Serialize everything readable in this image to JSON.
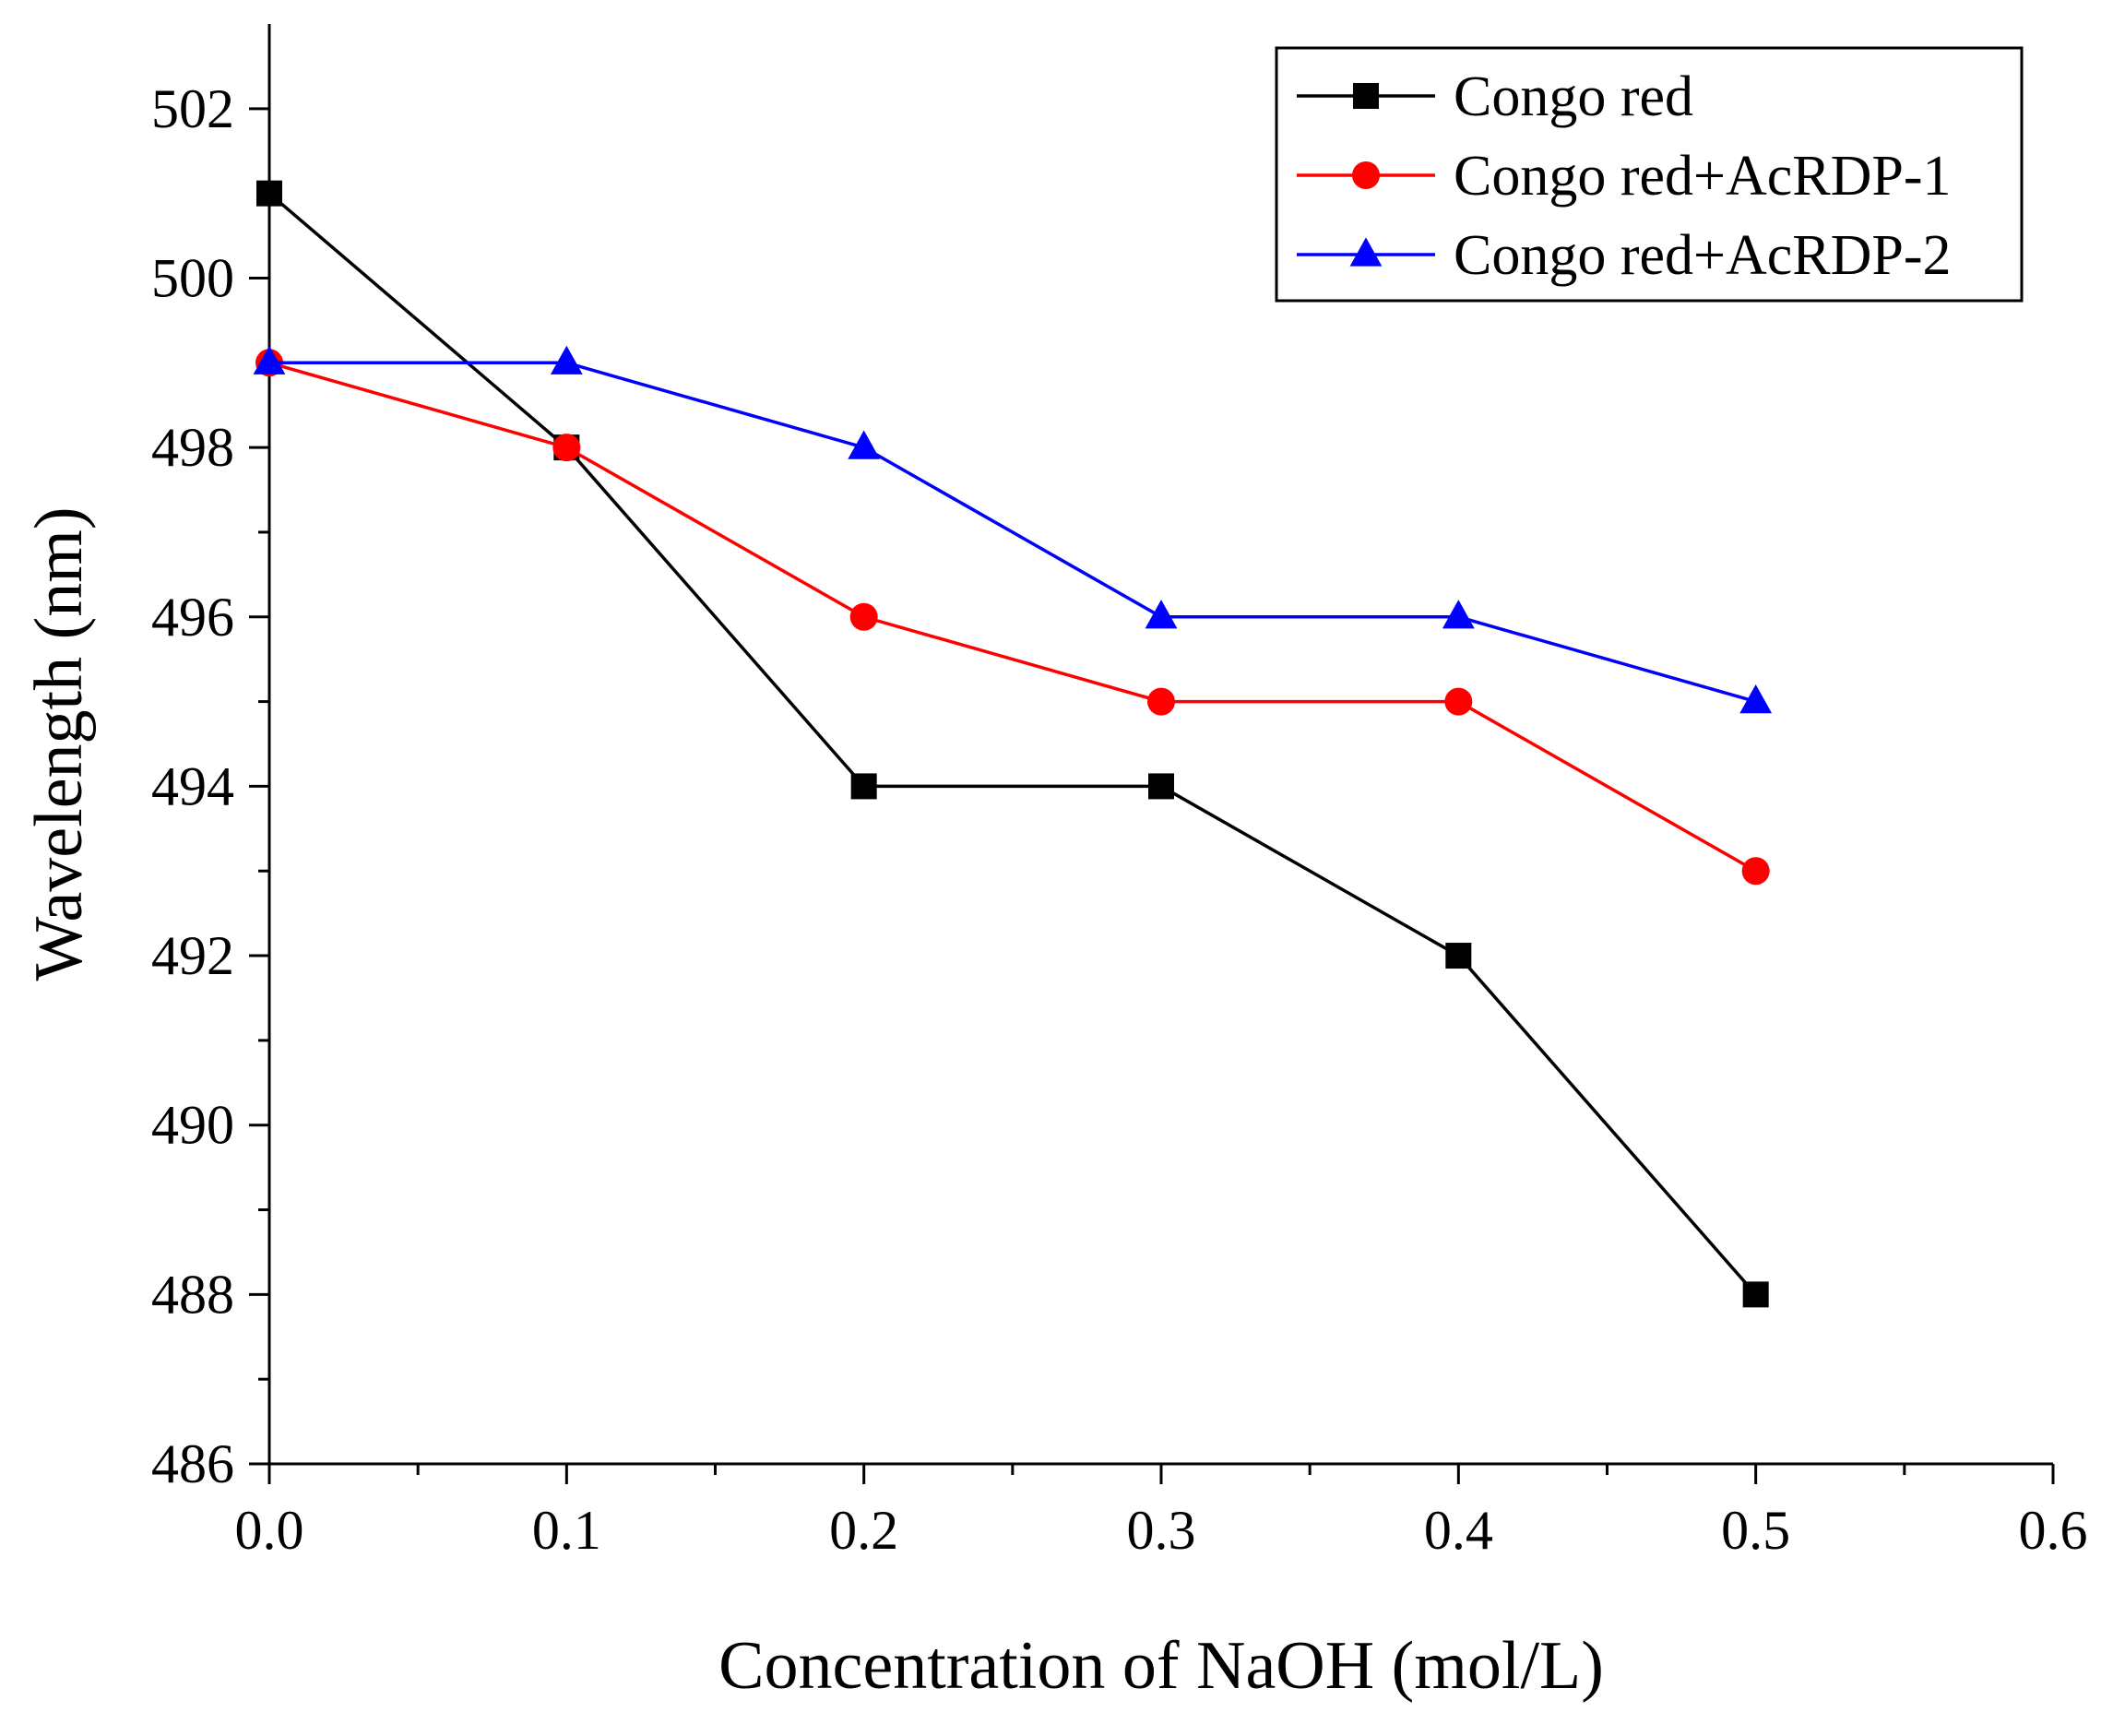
{
  "chart_data": {
    "type": "line",
    "title": "",
    "xlabel": "Concentration of NaOH (mol/L)",
    "ylabel": "Wavelength (nm)",
    "xlim": [
      0.0,
      0.6
    ],
    "ylim": [
      486,
      503
    ],
    "x_ticks": [
      0.0,
      0.1,
      0.2,
      0.3,
      0.4,
      0.5,
      0.6
    ],
    "x_tick_labels": [
      "0.0",
      "0.1",
      "0.2",
      "0.3",
      "0.4",
      "0.5",
      "0.6"
    ],
    "y_ticks": [
      486,
      488,
      490,
      492,
      494,
      496,
      498,
      500,
      502
    ],
    "y_tick_labels": [
      "486",
      "488",
      "490",
      "492",
      "494",
      "496",
      "498",
      "500",
      "502"
    ],
    "grid": false,
    "legend_position": "top-right",
    "x": [
      0.0,
      0.1,
      0.2,
      0.3,
      0.4,
      0.5
    ],
    "series": [
      {
        "name": "Congo red",
        "values": [
          501,
          498,
          494,
          494,
          492,
          488
        ],
        "color": "#000000",
        "marker": "square"
      },
      {
        "name": "Congo red+AcRDP-1",
        "values": [
          499,
          498,
          496,
          495,
          495,
          493
        ],
        "color": "#ff0000",
        "marker": "circle"
      },
      {
        "name": "Congo red+AcRDP-2",
        "values": [
          499,
          499,
          498,
          496,
          496,
          495
        ],
        "color": "#0000ff",
        "marker": "triangle"
      }
    ]
  }
}
